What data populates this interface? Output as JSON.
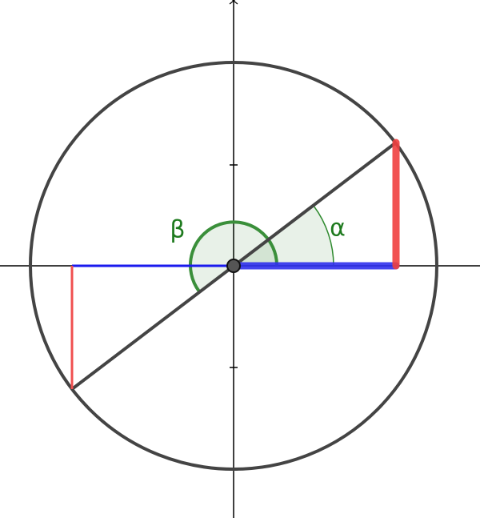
{
  "angles": [
    {
      "label": "α"
    },
    {
      "label": "β"
    }
  ]
}
